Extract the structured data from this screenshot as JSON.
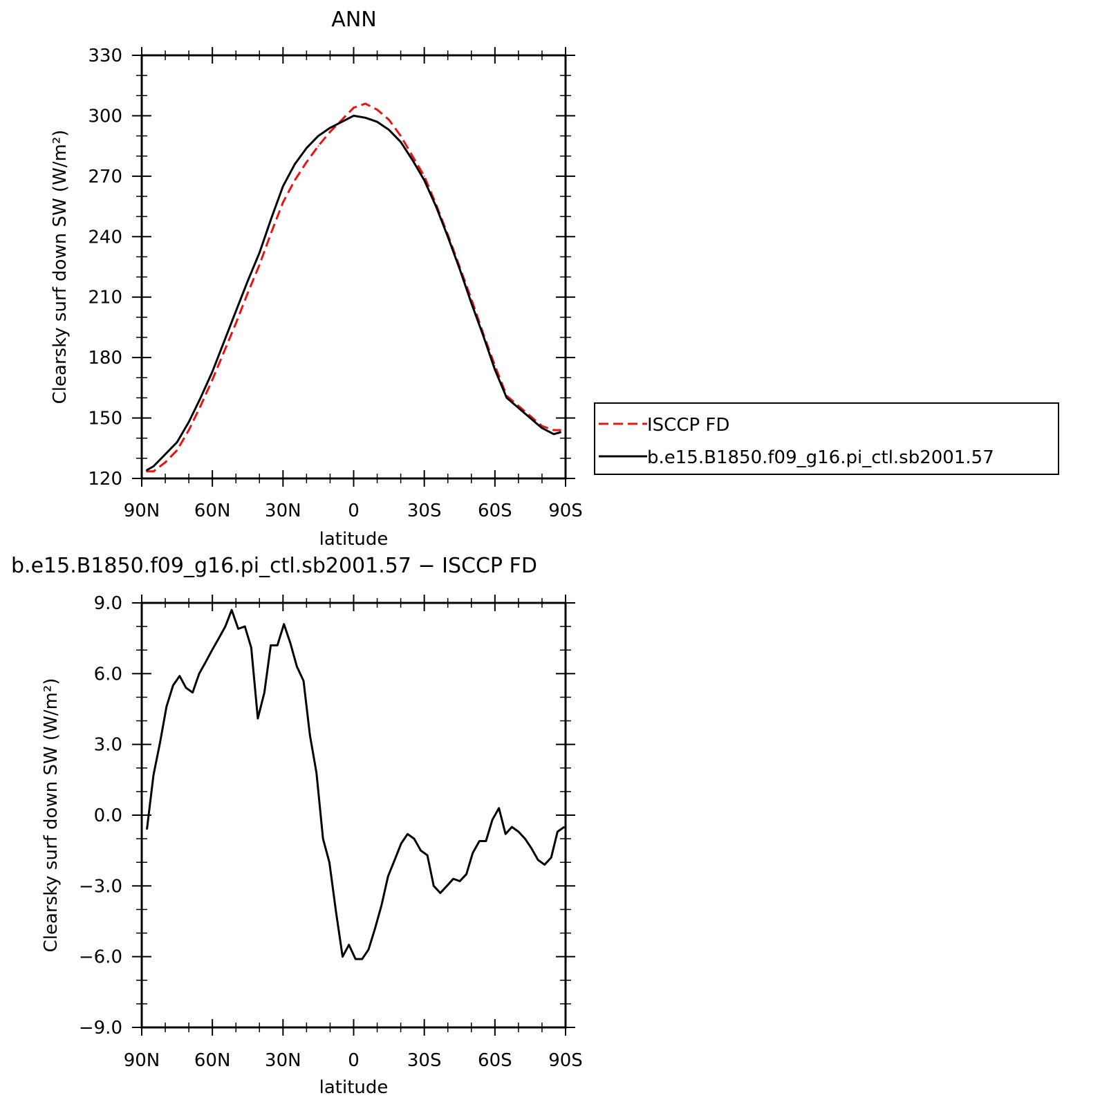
{
  "chart_data": [
    {
      "type": "line",
      "title": "ANN",
      "xlabel": "latitude",
      "ylabel": "Clearsky surf down SW (W/m²)",
      "xlim": [
        90,
        -90
      ],
      "ylim": [
        120,
        330
      ],
      "x_ticks": [
        {
          "value": 90,
          "label": "90N"
        },
        {
          "value": 60,
          "label": "60N"
        },
        {
          "value": 30,
          "label": "30N"
        },
        {
          "value": 0,
          "label": "0"
        },
        {
          "value": -30,
          "label": "30S"
        },
        {
          "value": -60,
          "label": "60S"
        },
        {
          "value": -90,
          "label": "90S"
        }
      ],
      "y_ticks": [
        {
          "value": 120,
          "label": "120"
        },
        {
          "value": 150,
          "label": "150"
        },
        {
          "value": 180,
          "label": "180"
        },
        {
          "value": 210,
          "label": "210"
        },
        {
          "value": 240,
          "label": "240"
        },
        {
          "value": 270,
          "label": "270"
        },
        {
          "value": 300,
          "label": "300"
        },
        {
          "value": 330,
          "label": "330"
        }
      ],
      "legend": {
        "placement": "right"
      },
      "series": [
        {
          "name": "ISCCP FD",
          "color": "#ee1111",
          "dash": "dashed",
          "x": [
            88,
            85,
            80,
            75,
            70,
            65,
            60,
            55,
            50,
            45,
            40,
            35,
            30,
            25,
            20,
            15,
            10,
            5,
            0,
            -5,
            -10,
            -15,
            -20,
            -25,
            -30,
            -35,
            -40,
            -45,
            -50,
            -55,
            -60,
            -65,
            -70,
            -75,
            -80,
            -85,
            -88
          ],
          "values": [
            123.5,
            123.5,
            128,
            134,
            144,
            156,
            169,
            183,
            197,
            212,
            226,
            242,
            257,
            268,
            277,
            285,
            292,
            298,
            304,
            306,
            303,
            298,
            290,
            280,
            270,
            256,
            241,
            225,
            209,
            192,
            176,
            161,
            156,
            151,
            146,
            144,
            144
          ]
        },
        {
          "name": "b.e15.B1850.f09_g16.pi_ctl.sb2001.57",
          "color": "#000000",
          "dash": "solid",
          "x": [
            88,
            85,
            80,
            75,
            70,
            65,
            60,
            55,
            50,
            45,
            40,
            35,
            30,
            25,
            20,
            15,
            10,
            5,
            0,
            -5,
            -10,
            -15,
            -20,
            -25,
            -30,
            -35,
            -40,
            -45,
            -50,
            -55,
            -60,
            -65,
            -70,
            -75,
            -80,
            -85,
            -88
          ],
          "values": [
            124,
            126,
            132,
            138,
            148,
            160,
            173,
            188,
            203,
            218,
            232,
            249,
            265,
            276,
            284,
            290,
            294,
            297,
            300,
            299,
            297,
            293,
            287,
            278,
            268,
            255,
            240,
            224,
            207,
            191,
            174,
            160,
            155,
            150,
            145,
            142,
            143
          ]
        }
      ]
    },
    {
      "type": "line",
      "title": "b.e15.B1850.f09_g16.pi_ctl.sb2001.57 − ISCCP FD",
      "xlabel": "latitude",
      "ylabel": "Clearsky surf down SW (W/m²)",
      "xlim": [
        90,
        -90
      ],
      "ylim": [
        -9.0,
        9.0
      ],
      "x_ticks": [
        {
          "value": 90,
          "label": "90N"
        },
        {
          "value": 60,
          "label": "60N"
        },
        {
          "value": 30,
          "label": "30N"
        },
        {
          "value": 0,
          "label": "0"
        },
        {
          "value": -30,
          "label": "30S"
        },
        {
          "value": -60,
          "label": "60S"
        },
        {
          "value": -90,
          "label": "90S"
        }
      ],
      "y_ticks": [
        {
          "value": 9.0,
          "label": "9.0"
        },
        {
          "value": 6.0,
          "label": "6.0"
        },
        {
          "value": 3.0,
          "label": "3.0"
        },
        {
          "value": 0.0,
          "label": "0.0"
        },
        {
          "value": -3.0,
          "label": "−3.0"
        },
        {
          "value": -6.0,
          "label": "−6.0"
        },
        {
          "value": -9.0,
          "label": "−9.0"
        }
      ],
      "series": [
        {
          "color": "#000000",
          "dash": "solid",
          "x": [
            87.8,
            85,
            82.2,
            79.5,
            76.7,
            73.9,
            71.2,
            68.4,
            65.6,
            62.8,
            60.1,
            57.3,
            54.5,
            51.8,
            49,
            46.2,
            43.5,
            40.7,
            37.9,
            35.2,
            32.4,
            29.6,
            26.9,
            24.1,
            21.3,
            18.6,
            15.8,
            13,
            10.3,
            7.5,
            4.7,
            2,
            -0.8,
            -3.6,
            -6.3,
            -9.1,
            -11.9,
            -14.6,
            -17.4,
            -20.2,
            -22.9,
            -25.7,
            -28.5,
            -31.3,
            -34,
            -36.8,
            -39.6,
            -42.3,
            -45.1,
            -47.9,
            -50.6,
            -53.4,
            -56.2,
            -58.9,
            -61.7,
            -64.5,
            -67.2,
            -70,
            -72.8,
            -75.5,
            -78.3,
            -81.1,
            -83.9,
            -86.6,
            -89.4
          ],
          "values": [
            -0.6,
            1.7,
            3.1,
            4.6,
            5.5,
            5.9,
            5.4,
            5.2,
            6.0,
            6.5,
            7.0,
            7.5,
            8.0,
            8.7,
            7.9,
            8.0,
            7.1,
            4.1,
            5.2,
            7.2,
            7.2,
            8.1,
            7.3,
            6.3,
            5.7,
            3.4,
            1.8,
            -1.0,
            -2.0,
            -4.1,
            -6.0,
            -5.5,
            -6.1,
            -6.1,
            -5.7,
            -4.8,
            -3.8,
            -2.6,
            -1.9,
            -1.2,
            -0.8,
            -1.0,
            -1.5,
            -1.7,
            -3.0,
            -3.3,
            -3.0,
            -2.7,
            -2.8,
            -2.5,
            -1.6,
            -1.1,
            -1.1,
            -0.2,
            0.3,
            -0.8,
            -0.5,
            -0.7,
            -1.0,
            -1.4,
            -1.9,
            -2.1,
            -1.8,
            -0.7,
            -0.5
          ]
        }
      ]
    }
  ]
}
